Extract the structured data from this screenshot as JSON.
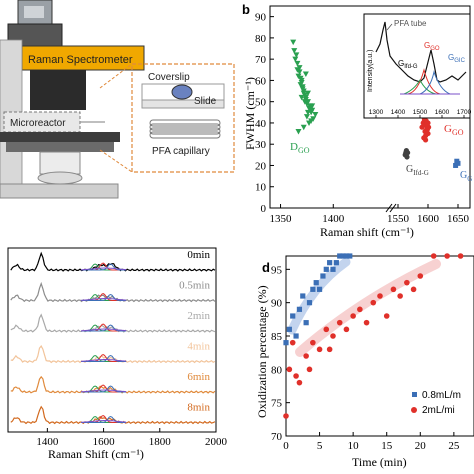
{
  "panel_a": {
    "instrument_label": "Raman Spectrometer",
    "reactor_label": "Microreactor",
    "coverslip_label": "Coverslip",
    "slide_label": "Slide",
    "capillary_label": "PFA capillary"
  },
  "panel_b": {
    "panel_letter": "b",
    "xlabel": "Raman shift (cm⁻¹)",
    "ylabel": "FWHM (cm⁻¹)",
    "x_ticks": [
      "1350",
      "1400",
      "1550",
      "1600",
      "1650"
    ],
    "y_ticks": [
      "0",
      "10",
      "20",
      "30",
      "40",
      "50",
      "60",
      "70",
      "80",
      "90"
    ],
    "labels": {
      "dgo": "DГО",
      "dgo_text": "D",
      "dgo_sub": "GO",
      "ggo": "G",
      "ggo_sub": "GO",
      "gifd": "G",
      "gifd_sub": "Ifd-G",
      "gedge": "G",
      "gedge_sub": "G"
    },
    "inset": {
      "ylabel": "Intensity(a.u.)",
      "annotation": "PFA tube",
      "peak_labels": [
        "G",
        "G",
        "G"
      ],
      "peak_subs": [
        "Ifd-G",
        "GO",
        "GIC"
      ],
      "x_ticks": [
        "1300",
        "1400",
        "1500",
        "1600",
        "1700"
      ]
    }
  },
  "panel_c": {
    "xlabel": "Raman Shift (cm⁻¹)",
    "x_ticks": [
      "1400",
      "1600",
      "1800",
      "2000"
    ],
    "time_labels": [
      "0min",
      "0.5min",
      "2min",
      "4min",
      "6min",
      "8min"
    ],
    "trace_colors": [
      "#000000",
      "#8c8c8c",
      "#a9a9a9",
      "#f2c49b",
      "#e08a3c",
      "#d2691e"
    ]
  },
  "panel_d": {
    "panel_letter": "d",
    "xlabel": "Time (min)",
    "ylabel": "Oxidization percentage (%)",
    "x_ticks": [
      "0",
      "5",
      "10",
      "15",
      "20",
      "25"
    ],
    "y_ticks": [
      "70",
      "75",
      "80",
      "85",
      "90",
      "95"
    ],
    "legend": [
      "0.8mL/m",
      "2mL/mi"
    ]
  },
  "chart_data": [
    {
      "type": "scatter",
      "panel": "b",
      "xlabel": "Raman shift (cm⁻¹)",
      "ylabel": "FWHM (cm⁻¹)",
      "ylim": [
        0,
        95
      ],
      "series": [
        {
          "name": "D_GO",
          "color": "#2aa050",
          "marker": "triangle-down",
          "x": [
            1362,
            1365,
            1368,
            1370,
            1372,
            1374,
            1376,
            1378,
            1380,
            1383,
            1366,
            1369,
            1371,
            1373,
            1375,
            1377,
            1379,
            1364,
            1367,
            1372,
            1374,
            1370,
            1376,
            1368,
            1381,
            1363,
            1373,
            1378,
            1371,
            1375,
            1369,
            1377,
            1372,
            1366,
            1380,
            1374,
            1370,
            1379,
            1367,
            1376
          ],
          "y": [
            78,
            72,
            64,
            60,
            55,
            52,
            50,
            48,
            46,
            44,
            68,
            58,
            57,
            53,
            49,
            47,
            45,
            70,
            62,
            54,
            51,
            59,
            45,
            66,
            42,
            74,
            50,
            47,
            56,
            43,
            61,
            40,
            38,
            65,
            48,
            63,
            52,
            41,
            36,
            54
          ]
        },
        {
          "name": "G_GO",
          "color": "#e0302a",
          "marker": "circle",
          "x": [
            1590,
            1592,
            1594,
            1595,
            1596,
            1597,
            1598,
            1599,
            1600,
            1601,
            1593,
            1596,
            1598,
            1595,
            1597,
            1599,
            1594,
            1600,
            1596,
            1598
          ],
          "y": [
            38,
            40,
            42,
            36,
            39,
            41,
            37,
            35,
            40,
            38,
            33,
            34,
            39,
            43,
            36,
            37,
            41,
            35,
            32,
            40
          ]
        },
        {
          "name": "G_Ifd-G",
          "color": "#404040",
          "marker": "circle",
          "x": [
            1562,
            1564,
            1566,
            1565,
            1563
          ],
          "y": [
            25,
            27,
            26,
            24,
            26
          ]
        },
        {
          "name": "G_G",
          "color": "#3b6fb6",
          "marker": "square",
          "x": [
            1646,
            1648,
            1650
          ],
          "y": [
            20,
            22,
            21
          ]
        }
      ]
    },
    {
      "type": "scatter",
      "panel": "d",
      "xlabel": "Time (min)",
      "ylabel": "Oxidization percentage (%)",
      "ylim": [
        70,
        97
      ],
      "series": [
        {
          "name": "0.8mL/m",
          "color": "#3b6fb6",
          "marker": "square",
          "x": [
            0,
            0.5,
            1,
            1.5,
            2,
            2.5,
            3,
            3.5,
            4,
            4.5,
            5,
            5.5,
            6,
            6.5,
            7,
            7.5,
            8,
            8.5,
            9,
            9.5
          ],
          "y": [
            84,
            86,
            88,
            85,
            89,
            91,
            87,
            90,
            92,
            93,
            92,
            94,
            95,
            96,
            95,
            96,
            97,
            97,
            97,
            97
          ]
        },
        {
          "name": "2mL/mi",
          "color": "#e0302a",
          "marker": "circle",
          "x": [
            0,
            0.5,
            1,
            1.5,
            2,
            3,
            3.5,
            4,
            5,
            6,
            6.5,
            7,
            8,
            9,
            10,
            11,
            12,
            13,
            14,
            15,
            16,
            17,
            18,
            19,
            20,
            22,
            24,
            26
          ],
          "y": [
            73,
            80,
            84,
            79,
            78,
            82,
            80,
            84,
            83,
            86,
            83,
            85,
            87,
            86,
            88,
            89,
            87,
            90,
            91,
            88,
            92,
            91,
            93,
            92,
            94,
            97,
            97,
            97
          ]
        }
      ]
    }
  ]
}
